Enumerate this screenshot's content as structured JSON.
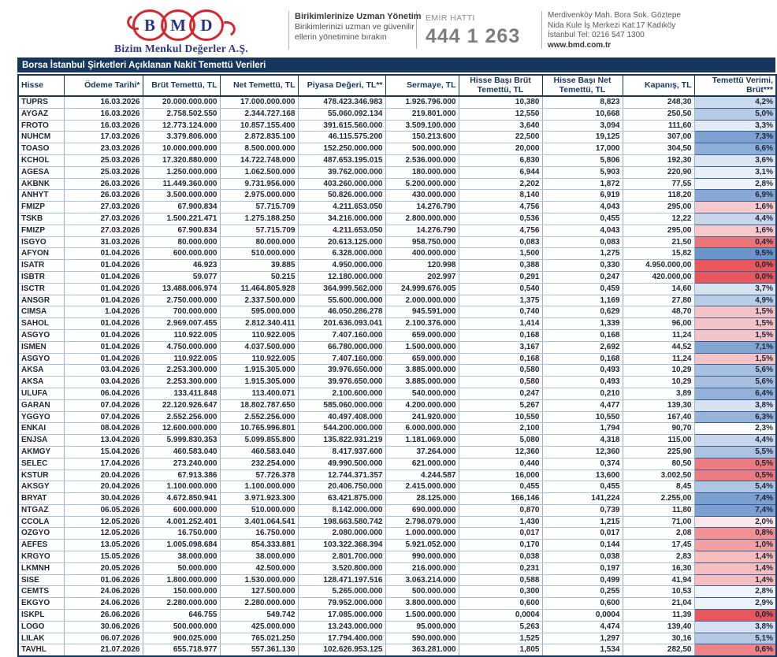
{
  "brand": {
    "logo_letters": [
      "B",
      "M",
      "D"
    ],
    "company_name": "Bizim Menkul Değerler A.Ş.",
    "slogan_title": "Birikimlerinize Uzman Yönetim",
    "slogan_line1": "Birikimlerinizi uzman ve güvenilir",
    "slogan_line2": "ellerin yönetimine bırakın",
    "order_line_label": "EMİR HATTI",
    "order_line_number": "444 1 263",
    "address_line1": "Merdivenköy Mah. Bora Sok. Göztepe",
    "address_line2": "Nida Kule İş Merkezi Kat:17 Kadıköy",
    "address_line3": "İstanbul   Tel: 0216 547 1300",
    "website": "www.bmd.com.tr"
  },
  "table": {
    "title": "Borsa İstanbul Şirketleri Açıklanan Nakit Temettü Verileri",
    "columns": [
      "Hisse",
      "Ödeme Tarihi*",
      "Brüt Temettü, TL",
      "Net Temettü, TL",
      "Piyasa Değeri, TL**",
      "Sermaye, TL",
      "Hisse Başı Brüt Temettü, TL",
      "Hisse Başı Net Temettü, TL",
      "Kapanış, TL",
      "Temettü Verimi, Brüt***"
    ],
    "rows": [
      [
        "TUPRS",
        "16.03.2026",
        "20.000.000.000",
        "17.000.000.000",
        "478.423.346.983",
        "1.926.796.000",
        "10,380",
        "8,823",
        "248,30",
        "4,2%"
      ],
      [
        "AYGAZ",
        "16.03.2026",
        "2.758.502.550",
        "2.344.727.168",
        "55.060.092.134",
        "219.801.000",
        "12,550",
        "10,668",
        "250,50",
        "5,0%"
      ],
      [
        "FROTO",
        "16.03.2026",
        "12.773.124.000",
        "10.857.155.400",
        "391.615.560.000",
        "3.509.100.000",
        "3,640",
        "3,094",
        "111,60",
        "3,3%"
      ],
      [
        "NUHCM",
        "17.03.2026",
        "3.379.806.000",
        "2.872.835.100",
        "46.115.575.200",
        "150.213.600",
        "22,500",
        "19,125",
        "307,00",
        "7,3%"
      ],
      [
        "TOASO",
        "23.03.2026",
        "10.000.000.000",
        "8.500.000.000",
        "152.250.000.000",
        "500.000.000",
        "20,000",
        "17,000",
        "304,50",
        "6,6%"
      ],
      [
        "KCHOL",
        "25.03.2026",
        "17.320.880.000",
        "14.722.748.000",
        "487.653.195.015",
        "2.536.000.000",
        "6,830",
        "5,806",
        "192,30",
        "3,6%"
      ],
      [
        "AGESA",
        "25.03.2026",
        "1.250.000.000",
        "1.062.500.000",
        "39.762.000.000",
        "180.000.000",
        "6,944",
        "5,903",
        "220,90",
        "3,1%"
      ],
      [
        "AKBNK",
        "26.03.2026",
        "11.449.360.000",
        "9.731.956.000",
        "403.260.000.000",
        "5.200.000.000",
        "2,202",
        "1,872",
        "77,55",
        "2,8%"
      ],
      [
        "ANHYT",
        "26.03.2026",
        "3.500.000.000",
        "2.975.000.000",
        "50.826.000.000",
        "430.000.000",
        "8,140",
        "6,919",
        "118,20",
        "6,9%"
      ],
      [
        "FMIZP",
        "27.03.2026",
        "67.900.834",
        "57.715.709",
        "4.211.653.050",
        "14.276.790",
        "4,756",
        "4,043",
        "295,00",
        "1,6%"
      ],
      [
        "TSKB",
        "27.03.2026",
        "1.500.221.471",
        "1.275.188.250",
        "34.216.000.000",
        "2.800.000.000",
        "0,536",
        "0,455",
        "12,22",
        "4,4%"
      ],
      [
        "FMIZP",
        "27.03.2026",
        "67.900.834",
        "57.715.709",
        "4.211.653.050",
        "14.276.790",
        "4,756",
        "4,043",
        "295,00",
        "1,6%"
      ],
      [
        "ISGYO",
        "31.03.2026",
        "80.000.000",
        "80.000.000",
        "20.613.125.000",
        "958.750.000",
        "0,083",
        "0,083",
        "21,50",
        "0,4%"
      ],
      [
        "AFYON",
        "01.04.2026",
        "600.000.000",
        "510.000.000",
        "6.328.000.000",
        "400.000.000",
        "1,500",
        "1,275",
        "15,82",
        "9,5%"
      ],
      [
        "ISATR",
        "01.04.2026",
        "46.923",
        "39.885",
        "4.950.000.000",
        "120.998",
        "0,388",
        "0,330",
        "4.950.000,00",
        "0,0%"
      ],
      [
        "ISBTR",
        "01.04.2026",
        "59.077",
        "50.215",
        "12.180.000.000",
        "202.997",
        "0,291",
        "0,247",
        "420.000,00",
        "0,0%"
      ],
      [
        "ISCTR",
        "01.04.2026",
        "13.488.006.974",
        "11.464.805.928",
        "364.999.562.000",
        "24.999.676.005",
        "0,540",
        "0,459",
        "14,60",
        "3,7%"
      ],
      [
        "ANSGR",
        "01.04.2026",
        "2.750.000.000",
        "2.337.500.000",
        "55.600.000.000",
        "2.000.000.000",
        "1,375",
        "1,169",
        "27,80",
        "4,9%"
      ],
      [
        "CIMSA",
        "1.04.2026",
        "700.000.000",
        "595.000.000",
        "46.050.286.278",
        "945.591.000",
        "0,740",
        "0,629",
        "48,70",
        "1,5%"
      ],
      [
        "SAHOL",
        "01.04.2026",
        "2.969.007.455",
        "2.812.340.411",
        "201.636.093.041",
        "2.100.376.000",
        "1,414",
        "1,339",
        "96,00",
        "1,5%"
      ],
      [
        "ASGYO",
        "01.04.2026",
        "110.922.005",
        "110.922.005",
        "7.407.160.000",
        "659.000.000",
        "0,168",
        "0,168",
        "11,24",
        "1,5%"
      ],
      [
        "ISMEN",
        "01.04.2026",
        "4.750.000.000",
        "4.037.500.000",
        "66.780.000.000",
        "1.500.000.000",
        "3,167",
        "2,692",
        "44,52",
        "7,1%"
      ],
      [
        "ASGYO",
        "01.04.2026",
        "110.922.005",
        "110.922.005",
        "7.407.160.000",
        "659.000.000",
        "0,168",
        "0,168",
        "11,24",
        "1,5%"
      ],
      [
        "AKSA",
        "03.04.2026",
        "2.253.300.000",
        "1.915.305.000",
        "39.976.650.000",
        "3.885.000.000",
        "0,580",
        "0,493",
        "10,29",
        "5,6%"
      ],
      [
        "AKSA",
        "03.04.2026",
        "2.253.300.000",
        "1.915.305.000",
        "39.976.650.000",
        "3.885.000.000",
        "0,580",
        "0,493",
        "10,29",
        "5,6%"
      ],
      [
        "ULUFA",
        "06.04.2026",
        "133.411.848",
        "113.400.071",
        "2.100.600.000",
        "540.000.000",
        "0,247",
        "0,210",
        "3,89",
        "6,4%"
      ],
      [
        "GARAN",
        "07.04.2026",
        "22.120.926.647",
        "18.802.787.650",
        "585.060.000.000",
        "4.200.000.000",
        "5,267",
        "4,477",
        "139,30",
        "3,8%"
      ],
      [
        "YGGYO",
        "07.04.2026",
        "2.552.256.000",
        "2.552.256.000",
        "40.497.408.000",
        "241.920.000",
        "10,550",
        "10,550",
        "167,40",
        "6,3%"
      ],
      [
        "ENKAI",
        "08.04.2026",
        "12.600.000.000",
        "10.765.996.801",
        "544.200.000.000",
        "6.000.000.000",
        "2,100",
        "1,794",
        "90,70",
        "2,3%"
      ],
      [
        "ENJSA",
        "13.04.2026",
        "5.999.830.353",
        "5.099.855.800",
        "135.822.931.219",
        "1.181.069.000",
        "5,080",
        "4,318",
        "115,00",
        "4,4%"
      ],
      [
        "AKMGY",
        "15.04.2026",
        "460.583.040",
        "460.583.040",
        "8.417.937.600",
        "37.264.000",
        "12,360",
        "12,360",
        "225,90",
        "5,5%"
      ],
      [
        "SELEC",
        "17.04.2026",
        "273.240.000",
        "232.254.000",
        "49.990.500.000",
        "621.000.000",
        "0,440",
        "0,374",
        "80,50",
        "0,5%"
      ],
      [
        "KSTUR",
        "20.04.2026",
        "67.913.386",
        "57.726.378",
        "12.744.371.357",
        "4.244.587",
        "16,000",
        "13,600",
        "3.002,50",
        "0,5%"
      ],
      [
        "AKSGY",
        "20.04.2026",
        "1.100.000.000",
        "1.100.000.000",
        "20.406.750.000",
        "2.415.000.000",
        "0,455",
        "0,455",
        "8,45",
        "5,4%"
      ],
      [
        "BRYAT",
        "30.04.2026",
        "4.672.850.941",
        "3.971.923.300",
        "63.421.875.000",
        "28.125.000",
        "166,146",
        "141,224",
        "2.255,00",
        "7,4%"
      ],
      [
        "NTGAZ",
        "06.05.2026",
        "600.000.000",
        "510.000.000",
        "8.142.000.000",
        "690.000.000",
        "0,870",
        "0,739",
        "11,80",
        "7,4%"
      ],
      [
        "CCOLA",
        "12.05.2026",
        "4.001.252.401",
        "3.401.064.541",
        "198.663.580.742",
        "2.798.079.000",
        "1,430",
        "1,215",
        "71,00",
        "2,0%"
      ],
      [
        "OZGYO",
        "12.05.2026",
        "16.750.000",
        "16.750.000",
        "2.080.000.000",
        "1.000.000.000",
        "0,017",
        "0,017",
        "2,08",
        "0,8%"
      ],
      [
        "AEFES",
        "13.05.2026",
        "1.005.098.684",
        "854.333.881",
        "103.322.368.394",
        "5.921.052.000",
        "0,170",
        "0,144",
        "17,45",
        "1,0%"
      ],
      [
        "KRGYO",
        "15.05.2026",
        "38.000.000",
        "38.000.000",
        "2.801.700.000",
        "990.000.000",
        "0,038",
        "0,038",
        "2,83",
        "1,4%"
      ],
      [
        "LKMNH",
        "20.05.2026",
        "50.000.000",
        "42.500.000",
        "3.520.800.000",
        "216.000.000",
        "0,231",
        "0,197",
        "16,30",
        "1,4%"
      ],
      [
        "SISE",
        "01.06.2026",
        "1.800.000.000",
        "1.530.000.000",
        "128.471.197.516",
        "3.063.214.000",
        "0,588",
        "0,499",
        "41,94",
        "1,4%"
      ],
      [
        "CEMTS",
        "24.06.2026",
        "150.000.000",
        "127.500.000",
        "5.265.000.000",
        "500.000.000",
        "0,300",
        "0,255",
        "10,53",
        "2,8%"
      ],
      [
        "EKGYO",
        "24.06.2026",
        "2.280.000.000",
        "2.280.000.000",
        "79.952.000.000",
        "3.800.000.000",
        "0,600",
        "0,600",
        "21,04",
        "2,9%"
      ],
      [
        "ISKPL",
        "26.06.2026",
        "646.755",
        "549.742",
        "17.085.000.000",
        "1.500.000.000",
        "0,0004",
        "0,0004",
        "11,39",
        "0,0%"
      ],
      [
        "LOGO",
        "30.06.2026",
        "500.000.000",
        "425.000.000",
        "13.243.000.000",
        "95.000.000",
        "5,263",
        "4,474",
        "139,40",
        "3,8%"
      ],
      [
        "LILAK",
        "06.07.2026",
        "900.025.000",
        "765.021.250",
        "17.794.400.000",
        "590.000.000",
        "1,525",
        "1,297",
        "30,16",
        "5,1%"
      ],
      [
        "TAVHL",
        "21.07.2026",
        "655.718.977",
        "557.361.130",
        "102.626.953.125",
        "363.281.000",
        "1,805",
        "1,534",
        "282,50",
        "0,6%"
      ]
    ]
  },
  "colors": {
    "navy": "#17365D",
    "grid_blue": "#95B3D7",
    "logo_red": "#D6252C",
    "logo_blue": "#2A3587",
    "yield_scale": {
      "min_value": 0.0,
      "mid_value": 2.3,
      "max_value": 8.0,
      "min_color": "#E8575C",
      "mid_color": "#FCFDFF",
      "max_color": "#6B94CA"
    }
  }
}
